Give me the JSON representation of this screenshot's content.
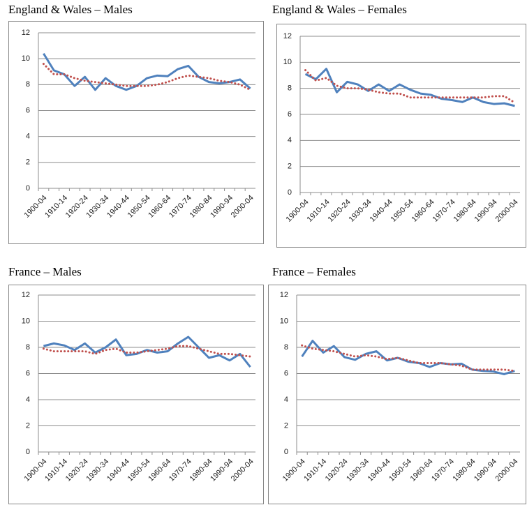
{
  "chart_data": [
    {
      "type": "line",
      "title": "England & Wales – Males",
      "categories": [
        "1900-04",
        null,
        "1910-14",
        null,
        "1920-24",
        null,
        "1930-34",
        null,
        "1940-44",
        null,
        "1950-54",
        null,
        "1960-64",
        null,
        "1970-74",
        null,
        "1980-84",
        null,
        "1990-94",
        null,
        "2000-04"
      ],
      "series": [
        {
          "color": "#4f81bd",
          "values": [
            10.4,
            9.1,
            8.8,
            7.9,
            8.6,
            7.6,
            8.5,
            7.9,
            7.6,
            7.9,
            8.5,
            8.7,
            8.65,
            9.2,
            9.45,
            8.6,
            8.2,
            8.1,
            8.2,
            8.4,
            7.7
          ]
        },
        {
          "color": "#c0504d",
          "values": [
            9.6,
            8.8,
            8.8,
            8.5,
            8.3,
            8.2,
            8.1,
            8.0,
            7.9,
            7.9,
            7.9,
            8.0,
            8.2,
            8.5,
            8.7,
            8.6,
            8.5,
            8.3,
            8.2,
            8.0,
            7.6
          ]
        }
      ],
      "ylim": [
        0,
        12
      ],
      "yticks": [
        0,
        2,
        4,
        6,
        8,
        10,
        12
      ],
      "grid": true
    },
    {
      "type": "line",
      "title": "England & Wales – Females",
      "categories": [
        "1900-04",
        null,
        "1910-14",
        null,
        "1920-24",
        null,
        "1930-34",
        null,
        "1940-44",
        null,
        "1950-54",
        null,
        "1960-64",
        null,
        "1970-74",
        null,
        "1980-84",
        null,
        "1990-94",
        null,
        "2000-04"
      ],
      "series": [
        {
          "color": "#4f81bd",
          "values": [
            9.1,
            8.7,
            9.5,
            7.7,
            8.5,
            8.3,
            7.8,
            8.3,
            7.8,
            8.3,
            7.9,
            7.6,
            7.5,
            7.2,
            7.1,
            6.95,
            7.3,
            6.95,
            6.8,
            6.85,
            6.65
          ]
        },
        {
          "color": "#c0504d",
          "values": [
            9.4,
            8.6,
            8.8,
            8.2,
            8.0,
            8.0,
            7.9,
            7.7,
            7.6,
            7.6,
            7.3,
            7.3,
            7.3,
            7.3,
            7.3,
            7.3,
            7.3,
            7.3,
            7.4,
            7.4,
            6.9
          ]
        }
      ],
      "ylim": [
        0,
        12
      ],
      "yticks": [
        0,
        2,
        4,
        6,
        8,
        10,
        12
      ],
      "grid": true
    },
    {
      "type": "line",
      "title": "France – Males",
      "categories": [
        "1900-04",
        null,
        "1910-14",
        null,
        "1920-24",
        null,
        "1930-34",
        null,
        "1940-44",
        null,
        "1950-54",
        null,
        "1960-64",
        null,
        "1970-74",
        null,
        "1980-84",
        null,
        "1990-94",
        null,
        "2000-04"
      ],
      "series": [
        {
          "color": "#4f81bd",
          "values": [
            8.1,
            8.3,
            8.15,
            7.8,
            8.3,
            7.6,
            8.0,
            8.6,
            7.4,
            7.5,
            7.8,
            7.6,
            7.7,
            8.3,
            8.8,
            8.0,
            7.2,
            7.4,
            7.0,
            7.5,
            6.5
          ]
        },
        {
          "color": "#c0504d",
          "values": [
            7.9,
            7.7,
            7.7,
            7.7,
            7.7,
            7.5,
            7.8,
            7.9,
            7.6,
            7.6,
            7.7,
            7.8,
            7.9,
            8.1,
            8.1,
            7.9,
            7.7,
            7.5,
            7.5,
            7.4,
            7.3
          ]
        }
      ],
      "ylim": [
        0,
        12
      ],
      "yticks": [
        0,
        2,
        4,
        6,
        8,
        10,
        12
      ],
      "grid": true
    },
    {
      "type": "line",
      "title": "France – Females",
      "categories": [
        "1900-04",
        null,
        "1910-14",
        null,
        "1920-24",
        null,
        "1930-34",
        null,
        "1940-44",
        null,
        "1950-54",
        null,
        "1960-64",
        null,
        "1970-74",
        null,
        "1980-84",
        null,
        "1990-94",
        null,
        "2000-04"
      ],
      "series": [
        {
          "color": "#4f81bd",
          "values": [
            7.3,
            8.5,
            7.6,
            8.1,
            7.25,
            7.05,
            7.5,
            7.7,
            7.0,
            7.2,
            6.9,
            6.8,
            6.5,
            6.8,
            6.7,
            6.75,
            6.3,
            6.2,
            6.15,
            5.95,
            6.2
          ]
        },
        {
          "color": "#c0504d",
          "values": [
            8.15,
            7.9,
            7.8,
            7.7,
            7.5,
            7.3,
            7.4,
            7.3,
            7.1,
            7.2,
            7.0,
            6.8,
            6.8,
            6.8,
            6.7,
            6.6,
            6.3,
            6.3,
            6.3,
            6.3,
            6.2
          ]
        }
      ],
      "ylim": [
        0,
        12
      ],
      "yticks": [
        0,
        2,
        4,
        6,
        8,
        10,
        12
      ],
      "grid": true
    }
  ]
}
